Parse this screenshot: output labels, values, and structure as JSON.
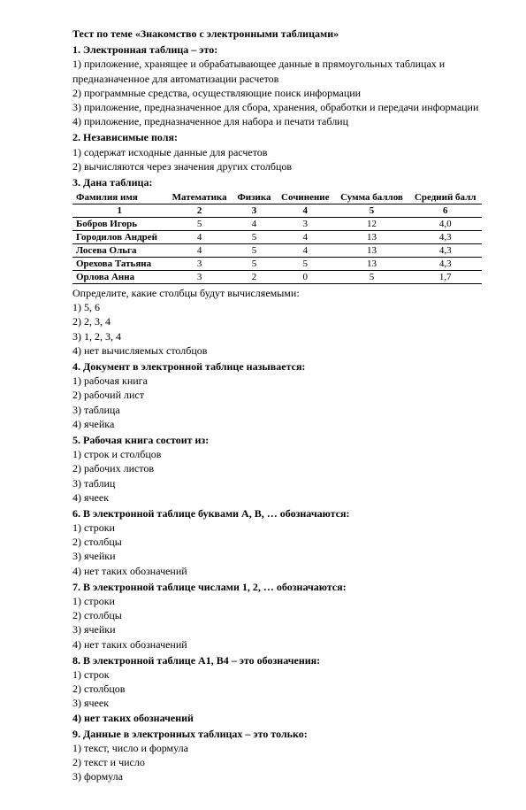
{
  "title": "Тест по теме «Знакомство с электронными таблицами»",
  "q1": {
    "header": "1. Электронная таблица – это:",
    "o1": "1) приложение, хранящее и обрабатывающее данные в прямоугольных таблицах и предназначенное для автоматизации расчетов",
    "o2": "2) программные средства, осуществляющие поиск информации",
    "o3": "3) приложение, предназначенное для сбора, хранения, обработки и передачи информации",
    "o4": "4) приложение, предназначенное для набора и печати таблиц"
  },
  "q2": {
    "header": "2. Независимые поля:",
    "o1": "1) содержат исходные данные для расчетов",
    "o2": "2) вычисляются через значения других столбцов"
  },
  "q3": {
    "header": "3. Дана таблица:",
    "columns": [
      "Фамилия имя",
      "Математика",
      "Физика",
      "Сочинение",
      "Сумма баллов",
      "Средний балл"
    ],
    "numrow": [
      "1",
      "2",
      "3",
      "4",
      "5",
      "6"
    ],
    "rows": [
      [
        "Бобров Игорь",
        "5",
        "4",
        "3",
        "12",
        "4,0"
      ],
      [
        "Городилов Андрей",
        "4",
        "5",
        "4",
        "13",
        "4,3"
      ],
      [
        "Лосева Ольга",
        "4",
        "5",
        "4",
        "13",
        "4,3"
      ],
      [
        "Орехова Татьяна",
        "3",
        "5",
        "5",
        "13",
        "4,3"
      ],
      [
        "Орлова Анна",
        "3",
        "2",
        "0",
        "5",
        "1,7"
      ]
    ],
    "prompt": "Определите, какие столбцы будут вычисляемыми:",
    "o1": "1) 5, 6",
    "o2": "2) 2, 3, 4",
    "o3": "3) 1, 2, 3, 4",
    "o4": "4) нет вычисляемых столбцов"
  },
  "q4": {
    "header": "4. Документ в электронной таблице называется:",
    "o1": "1) рабочая книга",
    "o2": "2) рабочий лист",
    "o3": "3) таблица",
    "o4": "4) ячейка"
  },
  "q5": {
    "header": "5. Рабочая книга состоит из:",
    "o1": "1) строк и столбцов",
    "o2": "2) рабочих листов",
    "o3": "3) таблиц",
    "o4": "4) ячеек"
  },
  "q6": {
    "header": "6. В электронной таблице буквами A, B, … обозначаются:",
    "o1": "1) строки",
    "o2": "2) столбцы",
    "o3": "3) ячейки",
    "o4": "4) нет таких обозначений"
  },
  "q7": {
    "header": "7. В электронной таблице числами 1, 2, … обозначаются:",
    "o1": "1) строки",
    "o2": "2) столбцы",
    "o3": "3) ячейки",
    "o4": "4) нет таких обозначений"
  },
  "q8": {
    "header": "8. В электронной таблице A1, B4 – это обозначения:",
    "o1": "1) строк",
    "o2": "2) столбцов",
    "o3": "3) ячеек",
    "o4": "4) нет таких обозначений"
  },
  "q9": {
    "header": "9. Данные в электронных таблицах – это  только:",
    "o1": "1) текст, число и формула",
    "o2": "2) текст и число",
    "o3": "3) формула"
  }
}
